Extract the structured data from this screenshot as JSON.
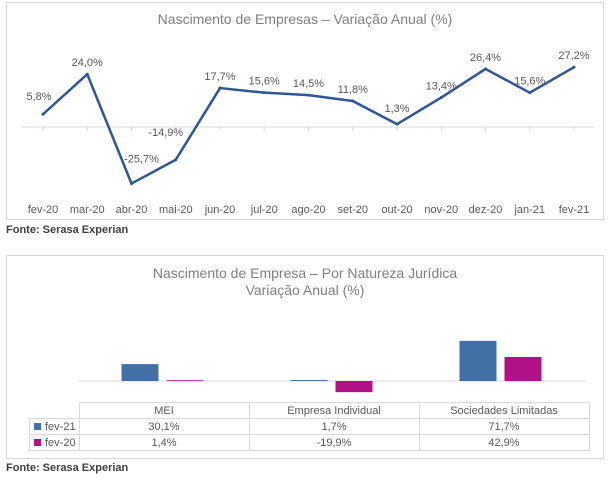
{
  "chart_data": [
    {
      "type": "line",
      "title": "Nascimento de Empresas – Variação Anual (%)",
      "categories": [
        "fev-20",
        "mar-20",
        "abr-20",
        "mai-20",
        "jun-20",
        "jul-20",
        "ago-20",
        "set-20",
        "out-20",
        "nov-20",
        "dez-20",
        "jan-21",
        "fev-21"
      ],
      "values": [
        5.8,
        24.0,
        -25.7,
        -14.9,
        17.7,
        15.6,
        14.5,
        11.8,
        1.3,
        13.4,
        26.4,
        15.6,
        27.2
      ],
      "data_labels": [
        "5,8%",
        "24,0%",
        "-25,7%",
        "-14,9%",
        "17,7%",
        "15,6%",
        "14,5%",
        "11,8%",
        "1,3%",
        "13,4%",
        "26,4%",
        "15,6%",
        "27,2%"
      ],
      "color": "#2f5597",
      "grid": false
    },
    {
      "type": "bar",
      "title": "Nascimento de Empresa – Por Natureza Jurídica",
      "subtitle": "Variação Anual (%)",
      "categories": [
        "MEI",
        "Empresa Individual",
        "Sociedades Limitadas"
      ],
      "series": [
        {
          "name": "fev-21",
          "values": [
            30.1,
            1.7,
            71.7
          ],
          "labels": [
            "30,1%",
            "1,7%",
            "71,7%"
          ],
          "color": "#416fa6"
        },
        {
          "name": "fev-20",
          "values": [
            1.4,
            -19.9,
            42.9
          ],
          "labels": [
            "1,4%",
            "-19,9%",
            "42,9%"
          ],
          "color": "#b01185"
        }
      ],
      "data_table": true,
      "grid": false
    }
  ],
  "sources": [
    "Fonte: Serasa Experian",
    "Fonte: Serasa Experian"
  ]
}
